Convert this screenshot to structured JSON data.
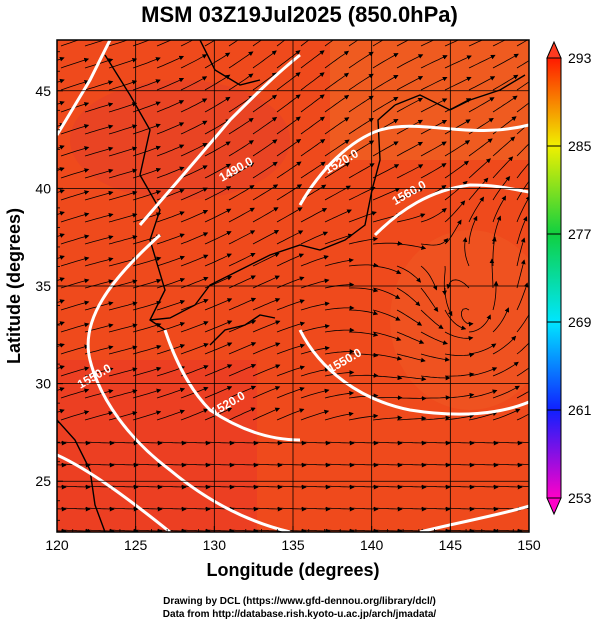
{
  "title": "MSM 03Z19Jul2025 (850.0hPa)",
  "xlabel": "Longitude (degrees)",
  "ylabel": "Latitude  (degrees)",
  "footer": {
    "line1": "Drawing by DCL (https://www.gfd-dennou.org/library/dcl/)",
    "line2": "Data from http://database.rish.kyoto-u.ac.jp/arch/jmadata/"
  },
  "chart_data": {
    "type": "heatmap",
    "x_range": [
      120,
      150
    ],
    "y_range": [
      22.4,
      47.6
    ],
    "x_ticks": [
      120,
      125,
      130,
      135,
      140,
      145,
      150
    ],
    "y_ticks": [
      25,
      30,
      35,
      40,
      45
    ],
    "colorbar": {
      "min": 253,
      "max": 293,
      "ticks": [
        253,
        261,
        269,
        277,
        285,
        293
      ],
      "colors": [
        "#ff00c8",
        "#1020ff",
        "#00e6ff",
        "#10d040",
        "#f0f000",
        "#ff1a00"
      ]
    },
    "contours": [
      {
        "label": "1490.0",
        "lon": 131.5,
        "lat": 40.8
      },
      {
        "label": "1520.0",
        "lon": 138.2,
        "lat": 41.2
      },
      {
        "label": "1560.0",
        "lon": 142.5,
        "lat": 39.6
      },
      {
        "label": "1550.0",
        "lon": 138.4,
        "lat": 31.0
      },
      {
        "label": "1520.0",
        "lon": 131.0,
        "lat": 28.8
      },
      {
        "label": "1550.0",
        "lon": 122.5,
        "lat": 30.2
      }
    ]
  }
}
